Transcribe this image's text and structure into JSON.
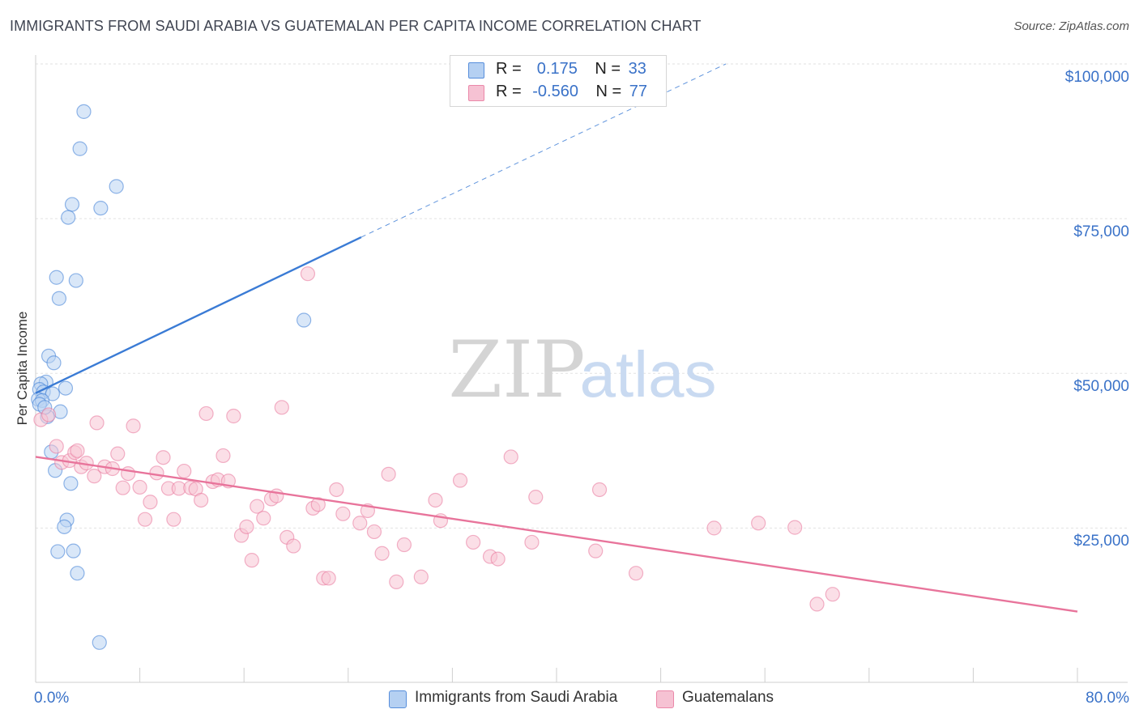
{
  "header": {
    "title": "IMMIGRANTS FROM SAUDI ARABIA VS GUATEMALAN PER CAPITA INCOME CORRELATION CHART",
    "source": "Source: ZipAtlas.com"
  },
  "watermark": {
    "part1": "ZIP",
    "part2": "atlas"
  },
  "legend": {
    "rows": [
      {
        "r_label": "R =",
        "r_value": " 0.175",
        "n_label": "N =",
        "n_value": "33",
        "color": "#a9c8f0"
      },
      {
        "r_label": "R =",
        "r_value": "-0.560",
        "n_label": "N =",
        "n_value": "77",
        "color": "#f5b8cc"
      }
    ]
  },
  "bottom_legend": {
    "items": [
      {
        "label": "Immigrants from Saudi Arabia",
        "color": "#a9c8f0"
      },
      {
        "label": "Guatemalans",
        "color": "#f5b8cc"
      }
    ]
  },
  "chart_data": {
    "type": "scatter",
    "ylabel": "Per Capita Income",
    "xlim": [
      0,
      80
    ],
    "ylim": [
      0,
      105000
    ],
    "x_ticks": [
      "0.0%",
      "80.0%"
    ],
    "y_ticks": [
      {
        "value": 25000,
        "label": "$25,000"
      },
      {
        "value": 50000,
        "label": "$50,000"
      },
      {
        "value": 75000,
        "label": "$75,000"
      },
      {
        "value": 100000,
        "label": "$100,000"
      }
    ],
    "grid": true,
    "legend_position": "top-center",
    "series": [
      {
        "name": "Immigrants from Saudi Arabia",
        "color": "#3a7bd5",
        "fill": "#b9d3f3",
        "trend": {
          "x0": 0,
          "y0": 46800,
          "x1": 25,
          "y1": 72000,
          "dash_x1": 53,
          "dash_y1": 100000
        },
        "points": [
          [
            3.7,
            92300
          ],
          [
            3.4,
            86300
          ],
          [
            6.2,
            80200
          ],
          [
            2.8,
            77300
          ],
          [
            5.0,
            76700
          ],
          [
            2.5,
            75200
          ],
          [
            1.6,
            65500
          ],
          [
            3.1,
            65000
          ],
          [
            1.8,
            62100
          ],
          [
            20.6,
            58600
          ],
          [
            1.0,
            52800
          ],
          [
            1.4,
            51700
          ],
          [
            0.8,
            48600
          ],
          [
            0.4,
            48300
          ],
          [
            2.3,
            47600
          ],
          [
            0.3,
            47400
          ],
          [
            0.6,
            47000
          ],
          [
            1.3,
            46700
          ],
          [
            0.2,
            45800
          ],
          [
            0.5,
            45600
          ],
          [
            0.3,
            45000
          ],
          [
            1.9,
            43800
          ],
          [
            0.9,
            43000
          ],
          [
            1.2,
            37300
          ],
          [
            1.5,
            34300
          ],
          [
            2.7,
            32200
          ],
          [
            2.4,
            26300
          ],
          [
            2.2,
            25200
          ],
          [
            1.7,
            21200
          ],
          [
            2.9,
            21300
          ],
          [
            3.2,
            17700
          ],
          [
            4.9,
            6500
          ],
          [
            0.7,
            44500
          ]
        ]
      },
      {
        "name": "Guatemalans",
        "color": "#e8749b",
        "fill": "#f7c4d4",
        "trend": {
          "x0": 0,
          "y0": 36500,
          "x1": 80,
          "y1": 11500
        },
        "points": [
          [
            0.4,
            42500
          ],
          [
            1.0,
            43300
          ],
          [
            1.6,
            38200
          ],
          [
            2.0,
            35600
          ],
          [
            2.6,
            35900
          ],
          [
            3.0,
            37200
          ],
          [
            3.5,
            34900
          ],
          [
            3.9,
            35500
          ],
          [
            4.5,
            33400
          ],
          [
            4.7,
            42000
          ],
          [
            5.3,
            34900
          ],
          [
            5.9,
            34600
          ],
          [
            6.3,
            37000
          ],
          [
            6.7,
            31500
          ],
          [
            7.1,
            33800
          ],
          [
            7.5,
            41500
          ],
          [
            8.0,
            31600
          ],
          [
            8.4,
            26400
          ],
          [
            8.8,
            29200
          ],
          [
            9.3,
            33900
          ],
          [
            9.8,
            36400
          ],
          [
            10.2,
            31400
          ],
          [
            10.6,
            26400
          ],
          [
            11.0,
            31400
          ],
          [
            11.4,
            34200
          ],
          [
            11.9,
            31500
          ],
          [
            12.3,
            31300
          ],
          [
            12.7,
            29500
          ],
          [
            13.1,
            43500
          ],
          [
            13.6,
            32500
          ],
          [
            14.0,
            32800
          ],
          [
            14.4,
            36700
          ],
          [
            14.8,
            32600
          ],
          [
            15.2,
            43100
          ],
          [
            15.8,
            23800
          ],
          [
            16.2,
            25200
          ],
          [
            16.6,
            19800
          ],
          [
            17.0,
            28500
          ],
          [
            17.5,
            26600
          ],
          [
            18.1,
            29700
          ],
          [
            18.5,
            30200
          ],
          [
            18.9,
            44500
          ],
          [
            19.3,
            23500
          ],
          [
            19.8,
            22100
          ],
          [
            20.9,
            66100
          ],
          [
            21.3,
            28200
          ],
          [
            21.7,
            28800
          ],
          [
            22.1,
            16900
          ],
          [
            22.5,
            16900
          ],
          [
            23.1,
            31200
          ],
          [
            23.6,
            27300
          ],
          [
            24.9,
            25800
          ],
          [
            25.5,
            27800
          ],
          [
            26.0,
            24400
          ],
          [
            26.6,
            20900
          ],
          [
            27.1,
            33700
          ],
          [
            27.7,
            16300
          ],
          [
            28.3,
            22300
          ],
          [
            29.6,
            17100
          ],
          [
            30.7,
            29500
          ],
          [
            31.1,
            26200
          ],
          [
            32.6,
            32700
          ],
          [
            33.6,
            22700
          ],
          [
            34.9,
            20400
          ],
          [
            35.5,
            20000
          ],
          [
            36.5,
            36500
          ],
          [
            38.1,
            22700
          ],
          [
            38.4,
            30000
          ],
          [
            43.0,
            21300
          ],
          [
            43.3,
            31200
          ],
          [
            46.1,
            17700
          ],
          [
            52.1,
            25000
          ],
          [
            55.5,
            25800
          ],
          [
            58.3,
            25100
          ],
          [
            60.0,
            12700
          ],
          [
            61.2,
            14300
          ],
          [
            3.2,
            37500
          ]
        ]
      }
    ]
  }
}
